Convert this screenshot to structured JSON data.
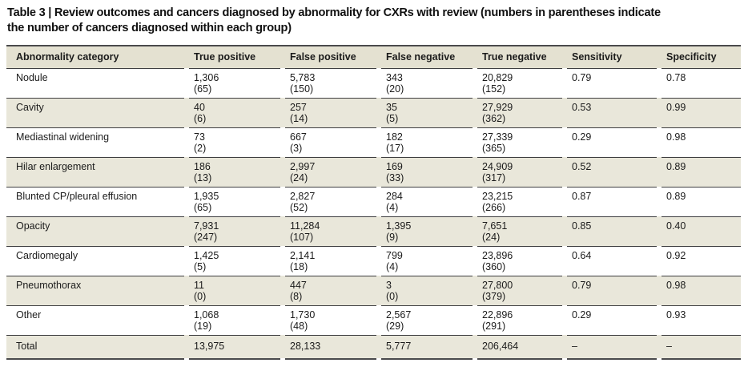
{
  "title": {
    "line1": "Table 3 | Review outcomes and cancers diagnosed by abnormality for CXRs with review (numbers in parentheses indicate",
    "line2": "the number of cancers diagnosed within each group)"
  },
  "colors": {
    "header_bg": "#e4e1d1",
    "shaded_bg": "#e9e7da",
    "rule_color": "#3e3e40",
    "border_dark": "#4a4a4c",
    "text_color": "#1b1b1b"
  },
  "table": {
    "columns": [
      "Abnormality category",
      "True positive",
      "False positive",
      "False negative",
      "True negative",
      "Sensitivity",
      "Specificity"
    ],
    "rows": [
      {
        "category": "Nodule",
        "values": [
          {
            "n": "1,306",
            "c": "(65)"
          },
          {
            "n": "5,783",
            "c": "(150)"
          },
          {
            "n": "343",
            "c": "(20)"
          },
          {
            "n": "20,829",
            "c": "(152)"
          },
          {
            "n": "0.79",
            "c": ""
          },
          {
            "n": "0.78",
            "c": ""
          }
        ]
      },
      {
        "category": "Cavity",
        "values": [
          {
            "n": "40",
            "c": "(6)"
          },
          {
            "n": "257",
            "c": "(14)"
          },
          {
            "n": "35",
            "c": "(5)"
          },
          {
            "n": "27,929",
            "c": "(362)"
          },
          {
            "n": "0.53",
            "c": ""
          },
          {
            "n": "0.99",
            "c": ""
          }
        ]
      },
      {
        "category": "Mediastinal widening",
        "values": [
          {
            "n": "73",
            "c": "(2)"
          },
          {
            "n": "667",
            "c": "(3)"
          },
          {
            "n": "182",
            "c": "(17)"
          },
          {
            "n": "27,339",
            "c": "(365)"
          },
          {
            "n": "0.29",
            "c": ""
          },
          {
            "n": "0.98",
            "c": ""
          }
        ]
      },
      {
        "category": "Hilar enlargement",
        "values": [
          {
            "n": "186",
            "c": "(13)"
          },
          {
            "n": "2,997",
            "c": "(24)"
          },
          {
            "n": "169",
            "c": "(33)"
          },
          {
            "n": "24,909",
            "c": "(317)"
          },
          {
            "n": "0.52",
            "c": ""
          },
          {
            "n": "0.89",
            "c": ""
          }
        ]
      },
      {
        "category": "Blunted CP/pleural effusion",
        "values": [
          {
            "n": "1,935",
            "c": "(65)"
          },
          {
            "n": "2,827",
            "c": "(52)"
          },
          {
            "n": "284",
            "c": "(4)"
          },
          {
            "n": "23,215",
            "c": "(266)"
          },
          {
            "n": "0.87",
            "c": ""
          },
          {
            "n": "0.89",
            "c": ""
          }
        ]
      },
      {
        "category": "Opacity",
        "values": [
          {
            "n": "7,931",
            "c": "(247)"
          },
          {
            "n": "11,284",
            "c": "(107)"
          },
          {
            "n": "1,395",
            "c": "(9)"
          },
          {
            "n": "7,651",
            "c": "(24)"
          },
          {
            "n": "0.85",
            "c": ""
          },
          {
            "n": "0.40",
            "c": ""
          }
        ]
      },
      {
        "category": "Cardiomegaly",
        "values": [
          {
            "n": "1,425",
            "c": "(5)"
          },
          {
            "n": "2,141",
            "c": "(18)"
          },
          {
            "n": "799",
            "c": "(4)"
          },
          {
            "n": "23,896",
            "c": "(360)"
          },
          {
            "n": "0.64",
            "c": ""
          },
          {
            "n": "0.92",
            "c": ""
          }
        ]
      },
      {
        "category": "Pneumothorax",
        "values": [
          {
            "n": "11",
            "c": "(0)"
          },
          {
            "n": "447",
            "c": "(8)"
          },
          {
            "n": "3",
            "c": "(0)"
          },
          {
            "n": "27,800",
            "c": "(379)"
          },
          {
            "n": "0.79",
            "c": ""
          },
          {
            "n": "0.98",
            "c": ""
          }
        ]
      },
      {
        "category": "Other",
        "values": [
          {
            "n": "1,068",
            "c": "(19)"
          },
          {
            "n": "1,730",
            "c": "(48)"
          },
          {
            "n": "2,567",
            "c": "(29)"
          },
          {
            "n": "22,896",
            "c": "(291)"
          },
          {
            "n": "0.29",
            "c": ""
          },
          {
            "n": "0.93",
            "c": ""
          }
        ]
      },
      {
        "category": "Total",
        "values": [
          {
            "n": "13,975",
            "c": ""
          },
          {
            "n": "28,133",
            "c": ""
          },
          {
            "n": "5,777",
            "c": ""
          },
          {
            "n": "206,464",
            "c": ""
          },
          {
            "n": "–",
            "c": ""
          },
          {
            "n": "–",
            "c": ""
          }
        ]
      }
    ]
  }
}
